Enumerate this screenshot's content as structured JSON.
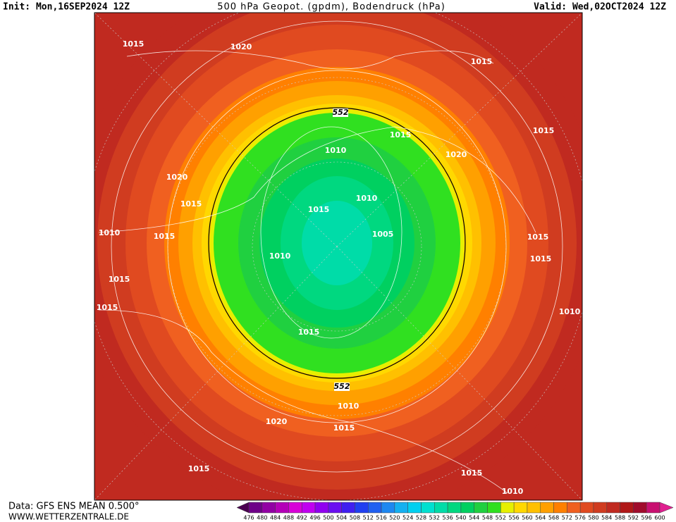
{
  "header": {
    "init": "Init: Mon,16SEP2024 12Z",
    "title": "500 hPa Geopot. (gpdm), Bodendruck (hPa)",
    "valid": "Valid: Wed,02OCT2024 12Z"
  },
  "footer": {
    "data": "Data: GFS ENS MEAN 0.500°",
    "site": "WWW.WETTERZENTRALE.DE"
  },
  "contour_labels": [
    "1015",
    "1020",
    "1015",
    "552",
    "1015",
    "1015",
    "1010",
    "1020",
    "1020",
    "1015",
    "1010",
    "1015",
    "1010",
    "1015",
    "1005",
    "1015",
    "1010",
    "1015",
    "1015",
    "1015",
    "1010",
    "1015",
    "552",
    "1010",
    "1020",
    "1015",
    "1015",
    "1015",
    "1010"
  ],
  "colorbar": {
    "values": [
      476,
      480,
      484,
      488,
      492,
      496,
      500,
      504,
      508,
      512,
      516,
      520,
      524,
      528,
      532,
      536,
      540,
      544,
      548,
      552,
      556,
      560,
      564,
      568,
      572,
      576,
      580,
      584,
      588,
      592,
      596,
      600
    ],
    "colors": [
      "#4a0050",
      "#6e0088",
      "#9200a4",
      "#b400b8",
      "#d800d8",
      "#c000f0",
      "#9000f0",
      "#6a10f0",
      "#4020f0",
      "#2040f0",
      "#2060f0",
      "#1e88f0",
      "#14b0f0",
      "#00d0f0",
      "#00e0d0",
      "#00dca8",
      "#00d880",
      "#00d060",
      "#20d040",
      "#30e020",
      "#e6f000",
      "#ffd800",
      "#ffc000",
      "#ffa000",
      "#ff8000",
      "#f06020",
      "#e04a20",
      "#d03c20",
      "#c02a20",
      "#b01818",
      "#a00c2c",
      "#c81070",
      "#e02090"
    ]
  }
}
